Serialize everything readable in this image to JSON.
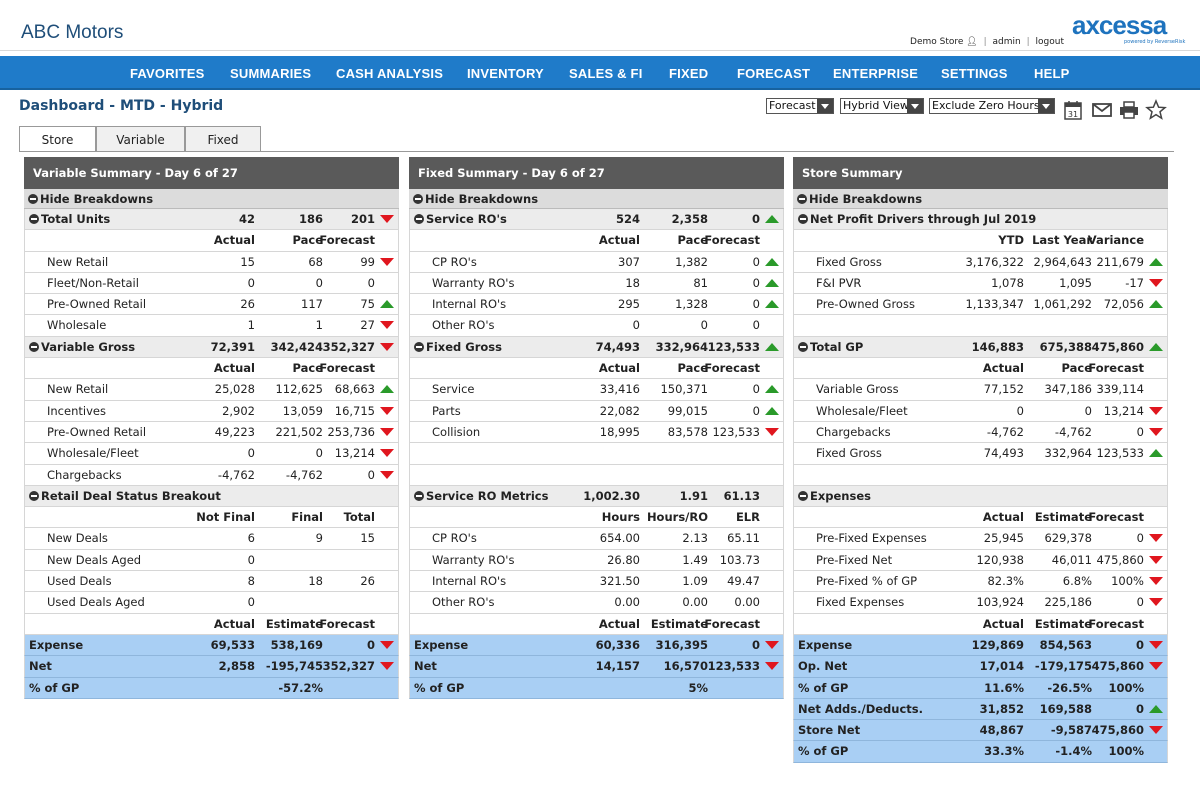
{
  "app": {
    "title": "ABC Motors",
    "user": {
      "store": "Demo Store",
      "username": "admin",
      "logout": "logout"
    },
    "logo": {
      "text": "axcessa",
      "tagline": "powered by ReverseRisk"
    }
  },
  "nav": [
    "FAVORITES",
    "SUMMARIES",
    "CASH ANALYSIS",
    "INVENTORY",
    "SALES & FI",
    "FIXED",
    "FORECAST",
    "ENTERPRISE",
    "SETTINGS",
    "HELP"
  ],
  "page": {
    "title": "Dashboard - MTD - Hybrid",
    "selects": [
      "Forecast",
      "Hybrid View",
      "Exclude Zero Hours"
    ],
    "tabs": [
      "Store",
      "Variable",
      "Fixed"
    ],
    "active_tab": "Store",
    "calendar_day": "31"
  },
  "colors": {
    "nav": "#1f7bc9",
    "panel_header": "#5a5a5a",
    "highlight": "#a9cff4",
    "up": "#2a9a2a",
    "down": "#e0161e"
  },
  "panels": [
    {
      "title": "Variable Summary - Day 6 of 27",
      "toggle": "Hide Breakdowns",
      "rows": [
        {
          "type": "sec",
          "label": "Total Units",
          "v": [
            "42",
            "186",
            "201"
          ],
          "ind": "down"
        },
        {
          "type": "hdr",
          "label": "",
          "v": [
            "Actual",
            "Pace",
            "Forecast"
          ],
          "ind": ""
        },
        {
          "type": "row",
          "label": "New Retail",
          "v": [
            "15",
            "68",
            "99"
          ],
          "ind": "down"
        },
        {
          "type": "row",
          "label": "Fleet/Non-Retail",
          "v": [
            "0",
            "0",
            "0"
          ],
          "ind": ""
        },
        {
          "type": "row",
          "label": "Pre-Owned Retail",
          "v": [
            "26",
            "117",
            "75"
          ],
          "ind": "up"
        },
        {
          "type": "row",
          "label": "Wholesale",
          "v": [
            "1",
            "1",
            "27"
          ],
          "ind": "down"
        },
        {
          "type": "sec",
          "label": "Variable Gross",
          "v": [
            "72,391",
            "342,424",
            "352,327"
          ],
          "ind": "down"
        },
        {
          "type": "hdr",
          "label": "",
          "v": [
            "Actual",
            "Pace",
            "Forecast"
          ],
          "ind": ""
        },
        {
          "type": "row",
          "label": "New Retail",
          "v": [
            "25,028",
            "112,625",
            "68,663"
          ],
          "ind": "up"
        },
        {
          "type": "row",
          "label": "Incentives",
          "v": [
            "2,902",
            "13,059",
            "16,715"
          ],
          "ind": "down"
        },
        {
          "type": "row",
          "label": "Pre-Owned Retail",
          "v": [
            "49,223",
            "221,502",
            "253,736"
          ],
          "ind": "down"
        },
        {
          "type": "row",
          "label": "Wholesale/Fleet",
          "v": [
            "0",
            "0",
            "13,214"
          ],
          "ind": "down"
        },
        {
          "type": "row",
          "label": "Chargebacks",
          "v": [
            "-4,762",
            "-4,762",
            "0"
          ],
          "ind": "down"
        },
        {
          "type": "sec",
          "label": "Retail Deal Status Breakout",
          "v": [
            "",
            "",
            ""
          ],
          "ind": ""
        },
        {
          "type": "hdr",
          "label": "",
          "v": [
            "Not Final",
            "Final",
            "Total"
          ],
          "ind": ""
        },
        {
          "type": "row",
          "label": "New Deals",
          "v": [
            "6",
            "9",
            "15"
          ],
          "ind": ""
        },
        {
          "type": "row",
          "label": "New Deals Aged",
          "v": [
            "0",
            "",
            ""
          ],
          "ind": ""
        },
        {
          "type": "row",
          "label": "Used Deals",
          "v": [
            "8",
            "18",
            "26"
          ],
          "ind": ""
        },
        {
          "type": "row",
          "label": "Used Deals Aged",
          "v": [
            "0",
            "",
            ""
          ],
          "ind": ""
        },
        {
          "type": "hdr",
          "label": "",
          "v": [
            "Actual",
            "Estimate",
            "Forecast"
          ],
          "ind": ""
        },
        {
          "type": "blue",
          "label": "Expense",
          "v": [
            "69,533",
            "538,169",
            "0"
          ],
          "ind": "down"
        },
        {
          "type": "blue",
          "label": "Net",
          "v": [
            "2,858",
            "-195,745",
            "352,327"
          ],
          "ind": "down"
        },
        {
          "type": "blue",
          "label": "% of GP",
          "v": [
            "",
            "-57.2%",
            ""
          ],
          "ind": ""
        }
      ]
    },
    {
      "title": "Fixed Summary - Day 6 of 27",
      "toggle": "Hide Breakdowns",
      "rows": [
        {
          "type": "sec",
          "label": "Service RO's",
          "v": [
            "524",
            "2,358",
            "0"
          ],
          "ind": "up"
        },
        {
          "type": "hdr",
          "label": "",
          "v": [
            "Actual",
            "Pace",
            "Forecast"
          ],
          "ind": ""
        },
        {
          "type": "row",
          "label": "CP RO's",
          "v": [
            "307",
            "1,382",
            "0"
          ],
          "ind": "up"
        },
        {
          "type": "row",
          "label": "Warranty RO's",
          "v": [
            "18",
            "81",
            "0"
          ],
          "ind": "up"
        },
        {
          "type": "row",
          "label": "Internal RO's",
          "v": [
            "295",
            "1,328",
            "0"
          ],
          "ind": "up"
        },
        {
          "type": "row",
          "label": "Other RO's",
          "v": [
            "0",
            "0",
            "0"
          ],
          "ind": ""
        },
        {
          "type": "sec",
          "label": "Fixed Gross",
          "v": [
            "74,493",
            "332,964",
            "123,533"
          ],
          "ind": "up"
        },
        {
          "type": "hdr",
          "label": "",
          "v": [
            "Actual",
            "Pace",
            "Forecast"
          ],
          "ind": ""
        },
        {
          "type": "row",
          "label": "Service",
          "v": [
            "33,416",
            "150,371",
            "0"
          ],
          "ind": "up"
        },
        {
          "type": "row",
          "label": "Parts",
          "v": [
            "22,082",
            "99,015",
            "0"
          ],
          "ind": "up"
        },
        {
          "type": "row",
          "label": "Collision",
          "v": [
            "18,995",
            "83,578",
            "123,533"
          ],
          "ind": "down"
        },
        {
          "type": "row",
          "label": "",
          "v": [
            "",
            "",
            ""
          ],
          "ind": ""
        },
        {
          "type": "row",
          "label": "",
          "v": [
            "",
            "",
            ""
          ],
          "ind": ""
        },
        {
          "type": "sec",
          "label": "Service RO Metrics",
          "v": [
            "1,002.30",
            "1.91",
            "61.13"
          ],
          "ind": ""
        },
        {
          "type": "hdr",
          "label": "",
          "v": [
            "Hours",
            "Hours/RO",
            "ELR"
          ],
          "ind": ""
        },
        {
          "type": "row",
          "label": "CP RO's",
          "v": [
            "654.00",
            "2.13",
            "65.11"
          ],
          "ind": ""
        },
        {
          "type": "row",
          "label": "Warranty RO's",
          "v": [
            "26.80",
            "1.49",
            "103.73"
          ],
          "ind": ""
        },
        {
          "type": "row",
          "label": "Internal RO's",
          "v": [
            "321.50",
            "1.09",
            "49.47"
          ],
          "ind": ""
        },
        {
          "type": "row",
          "label": "Other RO's",
          "v": [
            "0.00",
            "0.00",
            "0.00"
          ],
          "ind": ""
        },
        {
          "type": "hdr",
          "label": "",
          "v": [
            "Actual",
            "Estimate",
            "Forecast"
          ],
          "ind": ""
        },
        {
          "type": "blue",
          "label": "Expense",
          "v": [
            "60,336",
            "316,395",
            "0"
          ],
          "ind": "down"
        },
        {
          "type": "blue",
          "label": "Net",
          "v": [
            "14,157",
            "16,570",
            "123,533"
          ],
          "ind": "down"
        },
        {
          "type": "blue",
          "label": "% of GP",
          "v": [
            "",
            "5%",
            ""
          ],
          "ind": ""
        }
      ]
    },
    {
      "title": "Store Summary",
      "toggle": "Hide Breakdowns",
      "rows": [
        {
          "type": "sec",
          "label": "Net Profit Drivers through Jul 2019",
          "v": [
            "",
            "",
            ""
          ],
          "ind": ""
        },
        {
          "type": "hdr",
          "label": "",
          "v": [
            "YTD",
            "Last Year",
            "Variance"
          ],
          "ind": ""
        },
        {
          "type": "row",
          "label": "Fixed Gross",
          "v": [
            "3,176,322",
            "2,964,643",
            "211,679"
          ],
          "ind": "up"
        },
        {
          "type": "row",
          "label": "F&I PVR",
          "v": [
            "1,078",
            "1,095",
            "-17"
          ],
          "ind": "down"
        },
        {
          "type": "row",
          "label": "Pre-Owned Gross",
          "v": [
            "1,133,347",
            "1,061,292",
            "72,056"
          ],
          "ind": "up"
        },
        {
          "type": "row",
          "label": "",
          "v": [
            "",
            "",
            ""
          ],
          "ind": ""
        },
        {
          "type": "sec",
          "label": "Total GP",
          "v": [
            "146,883",
            "675,388",
            "475,860"
          ],
          "ind": "up"
        },
        {
          "type": "hdr",
          "label": "",
          "v": [
            "Actual",
            "Pace",
            "Forecast"
          ],
          "ind": ""
        },
        {
          "type": "row",
          "label": "Variable Gross",
          "v": [
            "77,152",
            "347,186",
            "339,114"
          ],
          "ind": ""
        },
        {
          "type": "row",
          "label": "Wholesale/Fleet",
          "v": [
            "0",
            "0",
            "13,214"
          ],
          "ind": "down"
        },
        {
          "type": "row",
          "label": "Chargebacks",
          "v": [
            "-4,762",
            "-4,762",
            "0"
          ],
          "ind": "down"
        },
        {
          "type": "row",
          "label": "Fixed Gross",
          "v": [
            "74,493",
            "332,964",
            "123,533"
          ],
          "ind": "up"
        },
        {
          "type": "row",
          "label": "",
          "v": [
            "",
            "",
            ""
          ],
          "ind": ""
        },
        {
          "type": "sec",
          "label": "Expenses",
          "v": [
            "",
            "",
            ""
          ],
          "ind": ""
        },
        {
          "type": "hdr",
          "label": "",
          "v": [
            "Actual",
            "Estimate",
            "Forecast"
          ],
          "ind": ""
        },
        {
          "type": "row",
          "label": "Pre-Fixed Expenses",
          "v": [
            "25,945",
            "629,378",
            "0"
          ],
          "ind": "down"
        },
        {
          "type": "row",
          "label": "Pre-Fixed Net",
          "v": [
            "120,938",
            "46,011",
            "475,860"
          ],
          "ind": "down"
        },
        {
          "type": "row",
          "label": "Pre-Fixed % of GP",
          "v": [
            "82.3%",
            "6.8%",
            "100%"
          ],
          "ind": "down"
        },
        {
          "type": "row",
          "label": "Fixed Expenses",
          "v": [
            "103,924",
            "225,186",
            "0"
          ],
          "ind": "down"
        },
        {
          "type": "hdr",
          "label": "",
          "v": [
            "Actual",
            "Estimate",
            "Forecast"
          ],
          "ind": ""
        },
        {
          "type": "blue",
          "label": "Expense",
          "v": [
            "129,869",
            "854,563",
            "0"
          ],
          "ind": "down"
        },
        {
          "type": "blue",
          "label": "Op. Net",
          "v": [
            "17,014",
            "-179,175",
            "475,860"
          ],
          "ind": "down"
        },
        {
          "type": "blue",
          "label": "% of GP",
          "v": [
            "11.6%",
            "-26.5%",
            "100%"
          ],
          "ind": ""
        },
        {
          "type": "blue",
          "label": "Net Adds./Deducts.",
          "v": [
            "31,852",
            "169,588",
            "0"
          ],
          "ind": "up"
        },
        {
          "type": "blue",
          "label": "Store Net",
          "v": [
            "48,867",
            "-9,587",
            "475,860"
          ],
          "ind": "down"
        },
        {
          "type": "blue",
          "label": "% of GP",
          "v": [
            "33.3%",
            "-1.4%",
            "100%"
          ],
          "ind": ""
        }
      ]
    }
  ]
}
